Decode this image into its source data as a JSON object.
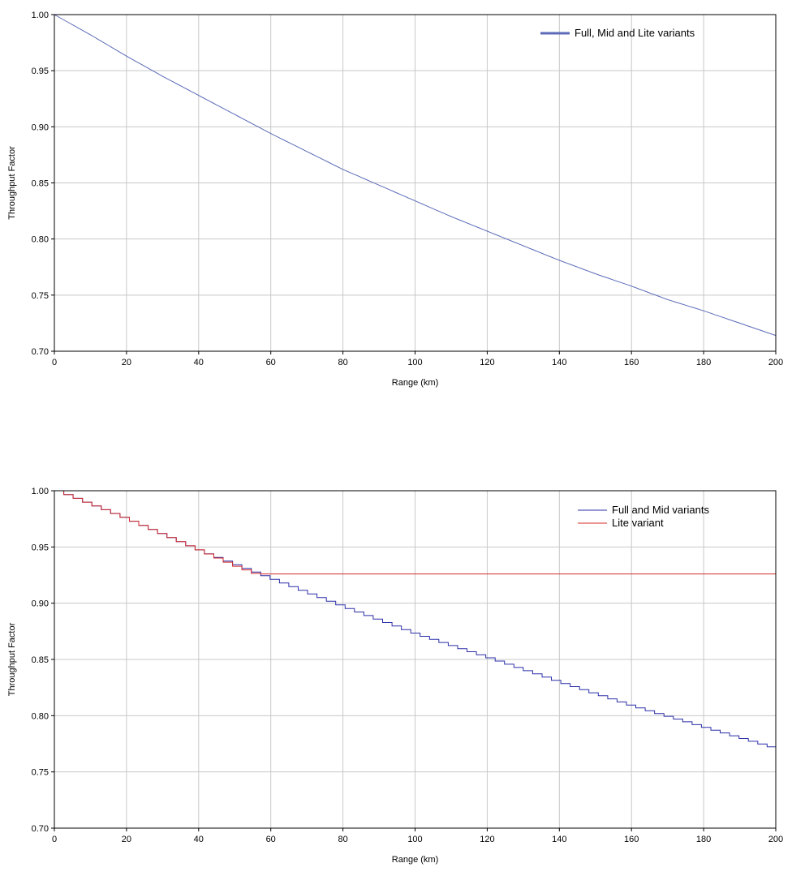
{
  "chart_data": [
    {
      "type": "line",
      "title": "",
      "xlabel": "Range (km)",
      "ylabel": "Throughput Factor",
      "xlim": [
        0,
        200
      ],
      "ylim": [
        0.7,
        1.0
      ],
      "x_ticks": [
        "0",
        "20",
        "40",
        "60",
        "80",
        "100",
        "120",
        "140",
        "160",
        "180",
        "200"
      ],
      "y_ticks": [
        "0.70",
        "0.75",
        "0.80",
        "0.85",
        "0.90",
        "0.95",
        "1.00"
      ],
      "grid": true,
      "legend_position": "top-right",
      "series": [
        {
          "name": "Full, Mid and Lite variants",
          "color": "#5b6bb8",
          "stepped": false,
          "points": [
            [
              0,
              1.0
            ],
            [
              10,
              0.982
            ],
            [
              20,
              0.963
            ],
            [
              30,
              0.945
            ],
            [
              40,
              0.928
            ],
            [
              50,
              0.911
            ],
            [
              60,
              0.894
            ],
            [
              70,
              0.878
            ],
            [
              80,
              0.862
            ],
            [
              90,
              0.848
            ],
            [
              100,
              0.834
            ],
            [
              110,
              0.82
            ],
            [
              120,
              0.807
            ],
            [
              130,
              0.794
            ],
            [
              140,
              0.781
            ],
            [
              150,
              0.769
            ],
            [
              160,
              0.758
            ],
            [
              170,
              0.746
            ],
            [
              180,
              0.736
            ],
            [
              190,
              0.725
            ],
            [
              200,
              0.714
            ]
          ]
        }
      ]
    },
    {
      "type": "line",
      "title": "",
      "xlabel": "Range (km)",
      "ylabel": "Throughput Factor",
      "xlim": [
        0,
        200
      ],
      "ylim": [
        0.7,
        1.0
      ],
      "x_ticks": [
        "0",
        "20",
        "40",
        "60",
        "80",
        "100",
        "120",
        "140",
        "160",
        "180",
        "200"
      ],
      "y_ticks": [
        "0.70",
        "0.75",
        "0.80",
        "0.85",
        "0.90",
        "0.95",
        "1.00"
      ],
      "grid": true,
      "legend_position": "top-right",
      "series": [
        {
          "name": "Full and Mid variants",
          "color": "#2b2fa8",
          "stepped": true,
          "points": [
            [
              0,
              1.0
            ],
            [
              20,
              0.974
            ],
            [
              40,
              0.946
            ],
            [
              60,
              0.921
            ],
            [
              80,
              0.896
            ],
            [
              100,
              0.872
            ],
            [
              120,
              0.851
            ],
            [
              140,
              0.829
            ],
            [
              160,
              0.808
            ],
            [
              180,
              0.789
            ],
            [
              200,
              0.77
            ]
          ]
        },
        {
          "name": "Lite variant",
          "color": "#d42a2a",
          "stepped": true,
          "points": [
            [
              0,
              1.0
            ],
            [
              10,
              0.987
            ],
            [
              20,
              0.974
            ],
            [
              30,
              0.96
            ],
            [
              40,
              0.946
            ],
            [
              50,
              0.932
            ],
            [
              55,
              0.926
            ],
            [
              200,
              0.926
            ]
          ]
        }
      ]
    }
  ]
}
